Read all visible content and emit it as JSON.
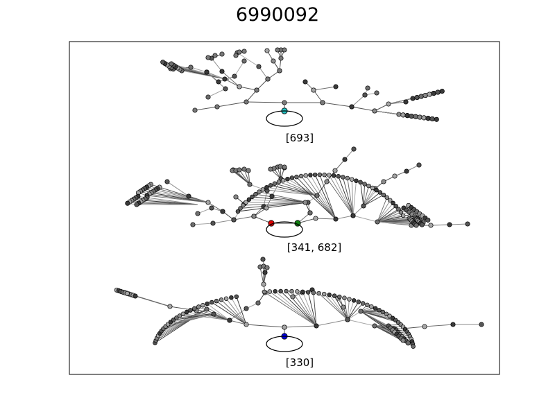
{
  "figure": {
    "title": "6990092"
  },
  "panels": [
    {
      "label": "[693]",
      "marked_nodes": [
        {
          "color": "#20c0c0"
        }
      ]
    },
    {
      "label": "[341, 682]",
      "marked_nodes": [
        {
          "color": "#e00000"
        },
        {
          "color": "#108010"
        }
      ]
    },
    {
      "label": "[330]",
      "marked_nodes": [
        {
          "color": "#0000e0"
        }
      ]
    }
  ],
  "style": {
    "node_fill": "#7a7a7a",
    "edge_color": "#555555"
  }
}
